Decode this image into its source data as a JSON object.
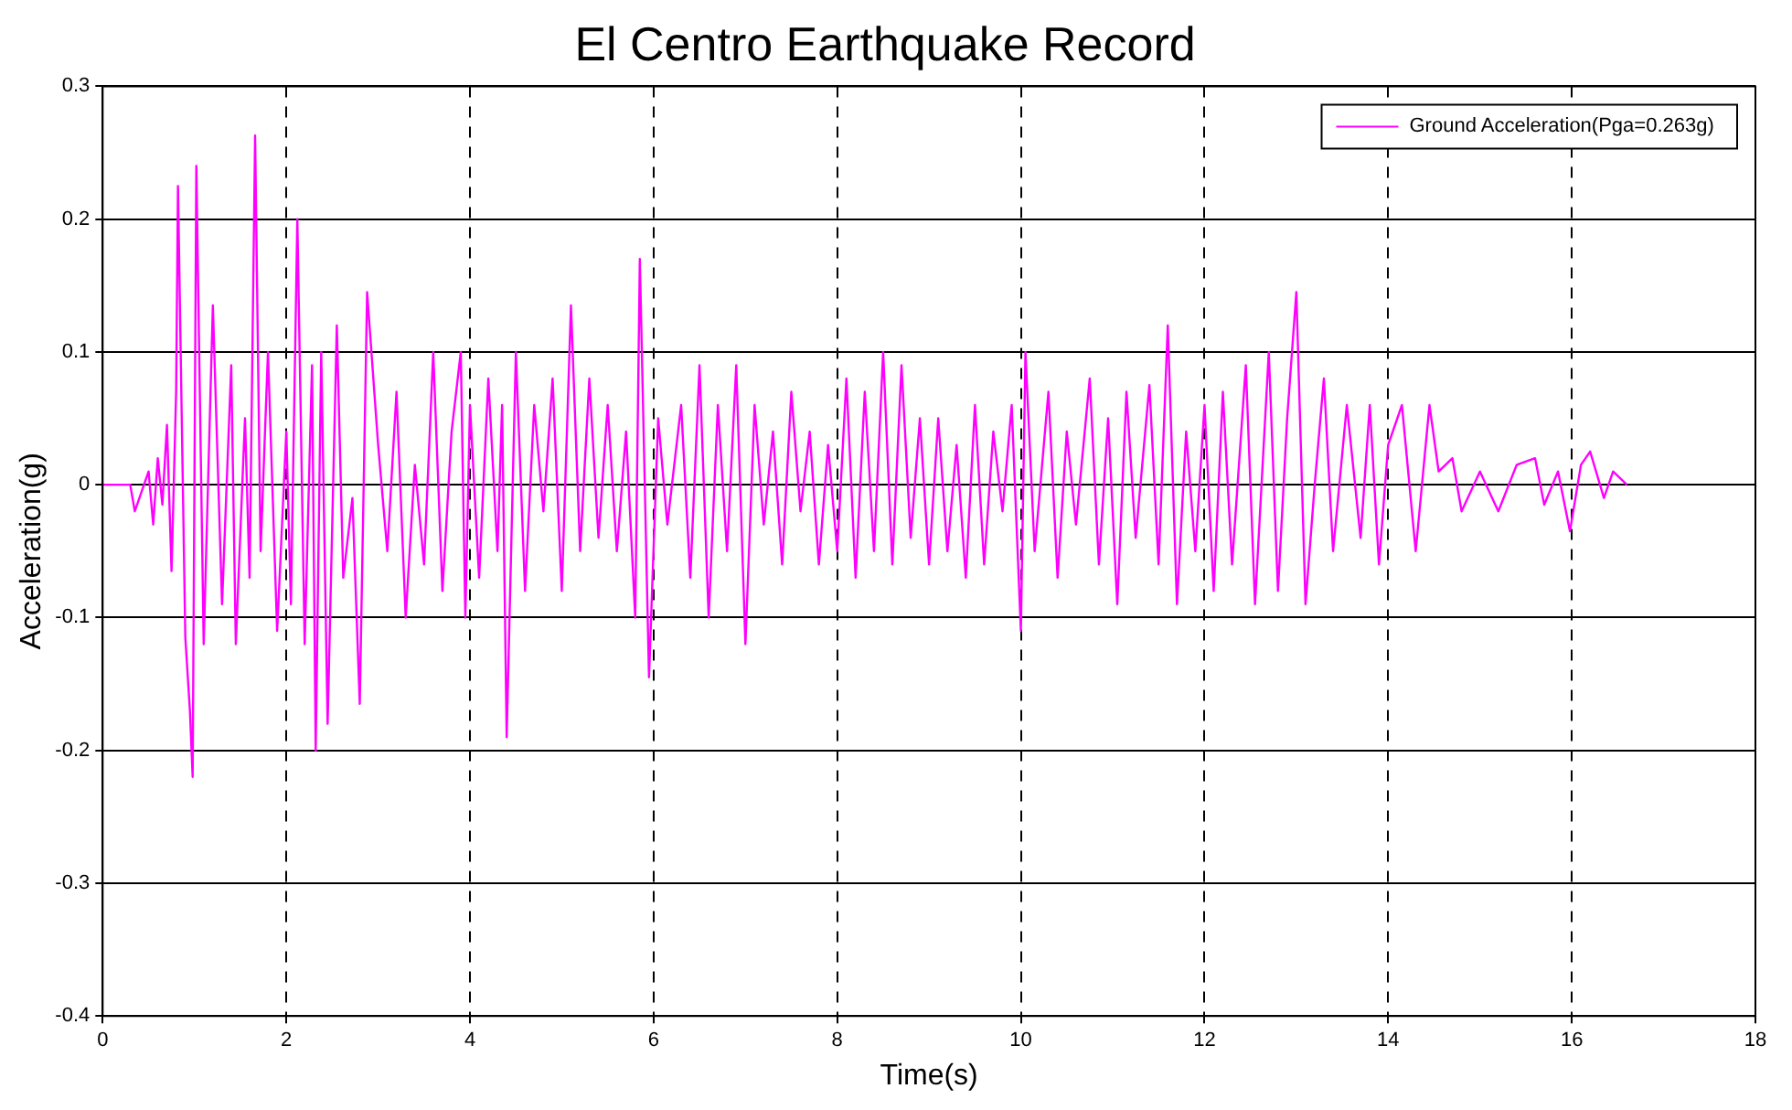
{
  "chart_data": {
    "type": "line",
    "title": "El Centro Earthquake Record",
    "xlabel": "Time(s)",
    "ylabel": "Acceleration(g)",
    "x": [
      0,
      0.3,
      0.35,
      0.5,
      0.55,
      0.6,
      0.65,
      0.7,
      0.75,
      0.8,
      0.82,
      0.9,
      0.95,
      0.98,
      1.02,
      1.1,
      1.2,
      1.3,
      1.4,
      1.45,
      1.55,
      1.6,
      1.66,
      1.72,
      1.8,
      1.9,
      2.0,
      2.05,
      2.12,
      2.2,
      2.28,
      2.32,
      2.38,
      2.45,
      2.55,
      2.62,
      2.72,
      2.8,
      2.88,
      3.0,
      3.1,
      3.2,
      3.3,
      3.4,
      3.5,
      3.6,
      3.7,
      3.8,
      3.9,
      3.95,
      4.0,
      4.1,
      4.2,
      4.3,
      4.35,
      4.4,
      4.5,
      4.6,
      4.7,
      4.8,
      4.9,
      5.0,
      5.1,
      5.2,
      5.3,
      5.4,
      5.5,
      5.6,
      5.7,
      5.8,
      5.85,
      5.95,
      6.05,
      6.15,
      6.3,
      6.4,
      6.5,
      6.6,
      6.7,
      6.8,
      6.9,
      7.0,
      7.1,
      7.2,
      7.3,
      7.4,
      7.5,
      7.6,
      7.7,
      7.8,
      7.9,
      8.0,
      8.1,
      8.2,
      8.3,
      8.4,
      8.5,
      8.6,
      8.7,
      8.8,
      8.9,
      9.0,
      9.1,
      9.2,
      9.3,
      9.4,
      9.5,
      9.6,
      9.7,
      9.8,
      9.9,
      10.0,
      10.05,
      10.15,
      10.3,
      10.4,
      10.5,
      10.6,
      10.75,
      10.85,
      10.95,
      11.05,
      11.15,
      11.25,
      11.4,
      11.5,
      11.6,
      11.7,
      11.8,
      11.9,
      12.0,
      12.1,
      12.2,
      12.3,
      12.45,
      12.55,
      12.7,
      12.8,
      12.9,
      13.0,
      13.1,
      13.2,
      13.3,
      13.4,
      13.55,
      13.7,
      13.8,
      13.9,
      14.0,
      14.15,
      14.3,
      14.45,
      14.55,
      14.7,
      14.8,
      15.0,
      15.2,
      15.4,
      15.6,
      15.7,
      15.85,
      15.98,
      16.1,
      16.2,
      16.35,
      16.45,
      16.6
    ],
    "series": [
      {
        "name": "Ground Acceleration(Pga=0.263g)",
        "color": "#ff00ff",
        "values": [
          0,
          0,
          -0.02,
          0.01,
          -0.03,
          0.02,
          -0.015,
          0.045,
          -0.065,
          0.07,
          0.225,
          -0.115,
          -0.17,
          -0.22,
          0.24,
          -0.12,
          0.135,
          -0.09,
          0.09,
          -0.12,
          0.05,
          -0.07,
          0.263,
          -0.05,
          0.1,
          -0.11,
          0.04,
          -0.09,
          0.2,
          -0.12,
          0.09,
          -0.2,
          0.1,
          -0.18,
          0.12,
          -0.07,
          -0.01,
          -0.165,
          0.145,
          0.03,
          -0.05,
          0.07,
          -0.1,
          0.015,
          -0.06,
          0.1,
          -0.08,
          0.04,
          0.1,
          -0.1,
          0.06,
          -0.07,
          0.08,
          -0.05,
          0.06,
          -0.19,
          0.1,
          -0.08,
          0.06,
          -0.02,
          0.08,
          -0.08,
          0.135,
          -0.05,
          0.08,
          -0.04,
          0.06,
          -0.05,
          0.04,
          -0.1,
          0.17,
          -0.145,
          0.05,
          -0.03,
          0.06,
          -0.07,
          0.09,
          -0.1,
          0.06,
          -0.05,
          0.09,
          -0.12,
          0.06,
          -0.03,
          0.04,
          -0.06,
          0.07,
          -0.02,
          0.04,
          -0.06,
          0.03,
          -0.05,
          0.08,
          -0.07,
          0.07,
          -0.05,
          0.1,
          -0.06,
          0.09,
          -0.04,
          0.05,
          -0.06,
          0.05,
          -0.05,
          0.03,
          -0.07,
          0.06,
          -0.06,
          0.04,
          -0.02,
          0.06,
          -0.11,
          0.1,
          -0.05,
          0.07,
          -0.07,
          0.04,
          -0.03,
          0.08,
          -0.06,
          0.05,
          -0.09,
          0.07,
          -0.04,
          0.075,
          -0.06,
          0.12,
          -0.09,
          0.04,
          -0.05,
          0.06,
          -0.08,
          0.07,
          -0.06,
          0.09,
          -0.09,
          0.1,
          -0.08,
          0.05,
          0.145,
          -0.09,
          0,
          0.08,
          -0.05,
          0.06,
          -0.04,
          0.06,
          -0.06,
          0.03,
          0.06,
          -0.05,
          0.06,
          0.01,
          0.02,
          -0.02,
          0.01,
          -0.02,
          0.015,
          0.02,
          -0.015,
          0.01,
          -0.035,
          0.015,
          0.025,
          -0.01,
          0.01,
          0
        ]
      }
    ],
    "xlim": [
      0,
      18
    ],
    "xticks": [
      0,
      2,
      4,
      6,
      8,
      10,
      12,
      14,
      16,
      18
    ],
    "ylim": [
      -0.4,
      0.3
    ],
    "yticks": [
      -0.4,
      -0.3,
      -0.2,
      -0.1,
      0,
      0.1,
      0.2,
      0.3
    ],
    "grid": true,
    "legend": "top right",
    "marker": "none",
    "line_style": "solid"
  }
}
